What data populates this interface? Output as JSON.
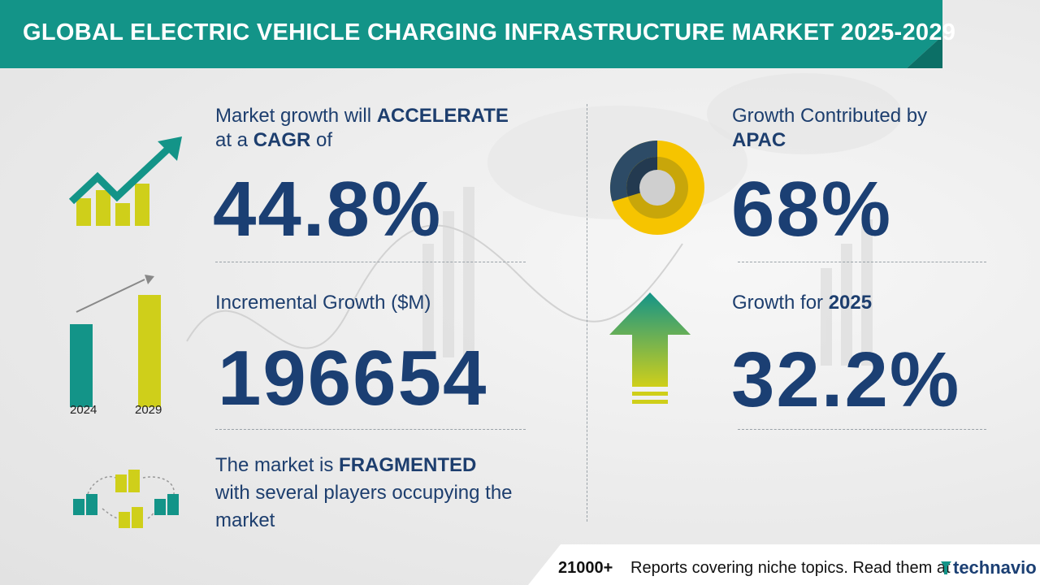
{
  "title": "GLOBAL ELECTRIC VEHICLE CHARGING INFRASTRUCTURE MARKET 2025-2029",
  "colors": {
    "teal": "#139488",
    "navy": "#1b3f73",
    "yellow": "#f6c400",
    "lime": "#cfcf1a"
  },
  "cagr": {
    "line1_prefix": "Market growth will ",
    "line1_bold": "ACCELERATE",
    "line2_prefix": "at a ",
    "line2_bold": "CAGR",
    "line2_suffix": " of",
    "value": "44.8%",
    "icon": "growth-trend-chart-icon"
  },
  "incremental": {
    "label": "Incremental Growth ($M)",
    "value": "196654",
    "years": [
      "2024",
      "2029"
    ],
    "icon": "bar-comparison-icon"
  },
  "fragmented": {
    "line1_prefix": "The market is ",
    "line1_bold": "FRAGMENTED",
    "line2": "with several players occupying the",
    "line3": "market",
    "icon": "buildings-network-icon"
  },
  "region": {
    "label": "Growth Contributed by",
    "region": "APAC",
    "value": "68%",
    "share": 0.68,
    "icon": "donut-chart-icon"
  },
  "yoy": {
    "label_prefix": "Growth for ",
    "year": "2025",
    "value": "32.2%",
    "icon": "up-arrow-icon"
  },
  "footer": {
    "count": "21000+",
    "text": "Reports covering niche topics. Read them at",
    "brand": "technavio",
    "brand_icon": "technavio-logo-icon"
  }
}
